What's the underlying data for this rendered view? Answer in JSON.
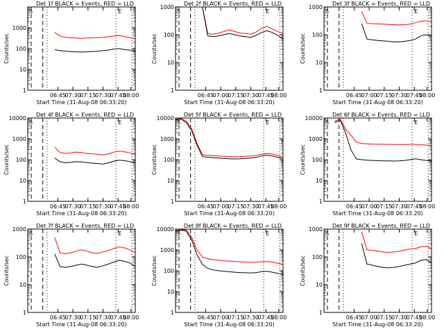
{
  "figure": {
    "xlabel": "Start Time (31-Aug-08 06:33:20)",
    "ylabel": "Counts/sec",
    "xtick_labels_a": [
      "06:45",
      "07:30",
      "07:15",
      "07:30",
      "07:45",
      "08:00"
    ],
    "xtick_labels_b": [
      "06:45",
      "07:00",
      "07:15",
      "07:30",
      "07:45",
      "08:00"
    ],
    "ytick_labels": [
      "1",
      "10",
      "100",
      "1000",
      "10000"
    ],
    "series_colors": {
      "events": "#000000",
      "lld": "#ff0000"
    }
  },
  "chart_data": [
    {
      "type": "line",
      "title": "Det 1f BLACK = Events, RED = LLD",
      "ylim": [
        1,
        10000
      ],
      "yscale": "log",
      "flags": [
        "S",
        "E"
      ],
      "xtick_set": "a",
      "y_tick_labels": [
        "1",
        "10",
        "100",
        "1000"
      ],
      "x": [
        0,
        0.05,
        0.1,
        0.15,
        0.2,
        0.25,
        0.3,
        0.35,
        0.4,
        0.45,
        0.5,
        0.55,
        0.6,
        0.65,
        0.7,
        0.75,
        0.8,
        0.85,
        0.9,
        0.95,
        1.0
      ],
      "series": [
        {
          "name": "BLACK = Events",
          "values": [
            null,
            null,
            null,
            null,
            null,
            90,
            80,
            75,
            72,
            70,
            68,
            70,
            72,
            75,
            80,
            85,
            95,
            100,
            90,
            85,
            75
          ]
        },
        {
          "name": "RED = LLD",
          "values": [
            null,
            null,
            null,
            null,
            null,
            600,
            400,
            350,
            330,
            320,
            310,
            320,
            330,
            340,
            350,
            370,
            400,
            420,
            380,
            340,
            300
          ]
        }
      ]
    },
    {
      "type": "line",
      "title": "Det 2f BLACK = Events, RED = LLD",
      "ylim": [
        1,
        1000
      ],
      "yscale": "log",
      "flags": [
        "S",
        "E"
      ],
      "xtick_set": "b",
      "y_tick_labels": [
        "1",
        "10",
        "100",
        "1000"
      ],
      "x": [
        0,
        0.05,
        0.1,
        0.15,
        0.2,
        0.25,
        0.3,
        0.35,
        0.4,
        0.45,
        0.5,
        0.55,
        0.6,
        0.65,
        0.7,
        0.75,
        0.8,
        0.85,
        0.9,
        0.95,
        1.0
      ],
      "series": [
        {
          "name": "BLACK = Events",
          "values": [
            null,
            null,
            null,
            null,
            null,
            1000,
            90,
            85,
            90,
            100,
            110,
            100,
            90,
            85,
            80,
            95,
            120,
            140,
            120,
            95,
            70
          ]
        },
        {
          "name": "RED = LLD",
          "values": [
            null,
            null,
            null,
            null,
            null,
            1000,
            110,
            105,
            115,
            130,
            150,
            130,
            115,
            110,
            105,
            125,
            170,
            200,
            160,
            130,
            110
          ]
        }
      ]
    },
    {
      "type": "line",
      "title": "Det 3f BLACK = Events, RED = LLD",
      "ylim": [
        1,
        1000
      ],
      "yscale": "log",
      "flags": [
        "S",
        "E"
      ],
      "xtick_set": "b",
      "y_tick_labels": [
        "1",
        "10",
        "100",
        "1000"
      ],
      "x": [
        0,
        0.05,
        0.1,
        0.15,
        0.2,
        0.25,
        0.3,
        0.35,
        0.4,
        0.45,
        0.5,
        0.55,
        0.6,
        0.65,
        0.7,
        0.75,
        0.8,
        0.85,
        0.9,
        0.95,
        1.0
      ],
      "series": [
        {
          "name": "BLACK = Events",
          "values": [
            null,
            null,
            null,
            null,
            null,
            null,
            null,
            250,
            70,
            65,
            62,
            60,
            58,
            55,
            55,
            58,
            62,
            70,
            90,
            100,
            85
          ]
        },
        {
          "name": "RED = LLD",
          "values": [
            null,
            null,
            null,
            null,
            null,
            null,
            null,
            700,
            260,
            250,
            245,
            240,
            235,
            230,
            225,
            230,
            240,
            270,
            300,
            320,
            290
          ]
        }
      ]
    },
    {
      "type": "line",
      "title": "Det 4f BLACK = Events, RED = LLD",
      "ylim": [
        1,
        10000
      ],
      "yscale": "log",
      "flags": [
        "S",
        "E"
      ],
      "xtick_set": "a",
      "y_tick_labels": [
        "1",
        "10",
        "100",
        "1000",
        "10000"
      ],
      "x": [
        0,
        0.05,
        0.1,
        0.15,
        0.2,
        0.25,
        0.3,
        0.35,
        0.4,
        0.45,
        0.5,
        0.55,
        0.6,
        0.65,
        0.7,
        0.75,
        0.8,
        0.85,
        0.9,
        0.95,
        1.0
      ],
      "series": [
        {
          "name": "BLACK = Events",
          "values": [
            null,
            null,
            null,
            null,
            null,
            120,
            80,
            70,
            75,
            80,
            78,
            72,
            68,
            65,
            62,
            70,
            85,
            95,
            90,
            80,
            70
          ]
        },
        {
          "name": "RED = LLD",
          "values": [
            null,
            null,
            null,
            null,
            null,
            400,
            220,
            200,
            210,
            230,
            220,
            200,
            190,
            180,
            170,
            190,
            230,
            260,
            240,
            210,
            180
          ]
        }
      ]
    },
    {
      "type": "line",
      "title": "Det 5f BLACK = Events, RED = LLD",
      "ylim": [
        1,
        10000
      ],
      "yscale": "log",
      "flags": [
        "S",
        "E"
      ],
      "xtick_set": "b",
      "y_tick_labels": [
        "1",
        "10",
        "100",
        "1000",
        "10000"
      ],
      "x": [
        0,
        0.05,
        0.1,
        0.15,
        0.2,
        0.25,
        0.3,
        0.35,
        0.4,
        0.45,
        0.5,
        0.55,
        0.6,
        0.65,
        0.7,
        0.75,
        0.8,
        0.85,
        0.9,
        0.95,
        1.0
      ],
      "series": [
        {
          "name": "BLACK = Events",
          "values": [
            8000,
            9000,
            6000,
            2500,
            500,
            140,
            130,
            125,
            120,
            115,
            110,
            108,
            110,
            115,
            120,
            130,
            150,
            165,
            150,
            130,
            110
          ]
        },
        {
          "name": "RED = LLD",
          "values": [
            8000,
            9500,
            7000,
            3000,
            600,
            170,
            160,
            155,
            150,
            145,
            140,
            138,
            140,
            145,
            150,
            160,
            180,
            200,
            185,
            160,
            130
          ]
        }
      ]
    },
    {
      "type": "line",
      "title": "Det 6f BLACK = Events, RED = LLD",
      "ylim": [
        1,
        10000
      ],
      "yscale": "log",
      "flags": [
        "S",
        "E"
      ],
      "xtick_set": "b",
      "y_tick_labels": [
        "1",
        "10",
        "100",
        "1000",
        "10000"
      ],
      "x": [
        0,
        0.05,
        0.1,
        0.15,
        0.2,
        0.25,
        0.3,
        0.35,
        0.4,
        0.45,
        0.5,
        0.55,
        0.6,
        0.65,
        0.7,
        0.75,
        0.8,
        0.85,
        0.9,
        0.95,
        1.0
      ],
      "series": [
        {
          "name": "BLACK = Events",
          "values": [
            null,
            null,
            6000,
            8000,
            2000,
            300,
            110,
            100,
            95,
            92,
            90,
            88,
            87,
            86,
            88,
            92,
            100,
            110,
            100,
            92,
            85
          ]
        },
        {
          "name": "RED = LLD",
          "values": [
            null,
            null,
            7000,
            9000,
            3000,
            1500,
            700,
            600,
            580,
            560,
            550,
            545,
            540,
            535,
            530,
            530,
            540,
            540,
            520,
            500,
            470
          ]
        }
      ]
    },
    {
      "type": "line",
      "title": "Det 7f BLACK = Events, RED = LLD",
      "ylim": [
        1,
        1000
      ],
      "yscale": "log",
      "flags": [
        "S",
        "E"
      ],
      "xtick_set": "a",
      "y_tick_labels": [
        "1",
        "10",
        "100",
        "1000"
      ],
      "x": [
        0,
        0.05,
        0.1,
        0.15,
        0.2,
        0.25,
        0.3,
        0.35,
        0.4,
        0.45,
        0.5,
        0.55,
        0.6,
        0.65,
        0.7,
        0.75,
        0.8,
        0.85,
        0.9,
        0.95,
        1.0
      ],
      "series": [
        {
          "name": "BLACK = Events",
          "values": [
            null,
            null,
            null,
            null,
            null,
            130,
            45,
            42,
            45,
            50,
            55,
            50,
            45,
            42,
            48,
            55,
            65,
            75,
            70,
            60,
            45
          ]
        },
        {
          "name": "RED = LLD",
          "values": [
            null,
            null,
            null,
            null,
            null,
            500,
            140,
            130,
            140,
            160,
            180,
            160,
            140,
            135,
            150,
            170,
            200,
            230,
            210,
            180,
            140
          ]
        }
      ]
    },
    {
      "type": "line",
      "title": "Det 8f BLACK = Events, RED = LLD",
      "ylim": [
        1,
        10000
      ],
      "yscale": "log",
      "flags": [
        "S",
        "E"
      ],
      "xtick_set": "b",
      "y_tick_labels": [
        "1",
        "10",
        "100",
        "1000",
        "10000"
      ],
      "x": [
        0,
        0.05,
        0.1,
        0.15,
        0.2,
        0.25,
        0.3,
        0.35,
        0.4,
        0.45,
        0.5,
        0.55,
        0.6,
        0.65,
        0.7,
        0.75,
        0.8,
        0.85,
        0.9,
        0.95,
        1.0
      ],
      "series": [
        {
          "name": "BLACK = Events",
          "values": [
            8000,
            9000,
            8000,
            3000,
            600,
            200,
            130,
            110,
            100,
            95,
            90,
            85,
            82,
            80,
            78,
            82,
            90,
            95,
            85,
            75,
            65
          ]
        },
        {
          "name": "RED = LLD",
          "values": [
            8000,
            9500,
            9000,
            4000,
            1000,
            450,
            380,
            340,
            320,
            300,
            290,
            280,
            270,
            260,
            250,
            255,
            270,
            280,
            260,
            230,
            200
          ]
        }
      ]
    },
    {
      "type": "line",
      "title": "Det 9f BLACK = Events, RED = LLD",
      "ylim": [
        1,
        1000
      ],
      "yscale": "log",
      "flags": [
        "S",
        "E"
      ],
      "xtick_set": "b",
      "y_tick_labels": [
        "1",
        "10",
        "100",
        "1000"
      ],
      "x": [
        0,
        0.05,
        0.1,
        0.15,
        0.2,
        0.25,
        0.3,
        0.35,
        0.4,
        0.45,
        0.5,
        0.55,
        0.6,
        0.65,
        0.7,
        0.75,
        0.8,
        0.85,
        0.9,
        0.95,
        1.0
      ],
      "series": [
        {
          "name": "BLACK = Events",
          "values": [
            null,
            null,
            null,
            null,
            null,
            null,
            null,
            300,
            55,
            50,
            45,
            42,
            40,
            42,
            45,
            50,
            55,
            60,
            75,
            80,
            60
          ]
        },
        {
          "name": "RED = LLD",
          "values": [
            null,
            null,
            null,
            null,
            null,
            null,
            null,
            800,
            180,
            170,
            160,
            150,
            145,
            150,
            160,
            175,
            190,
            200,
            230,
            240,
            200
          ]
        }
      ]
    }
  ]
}
